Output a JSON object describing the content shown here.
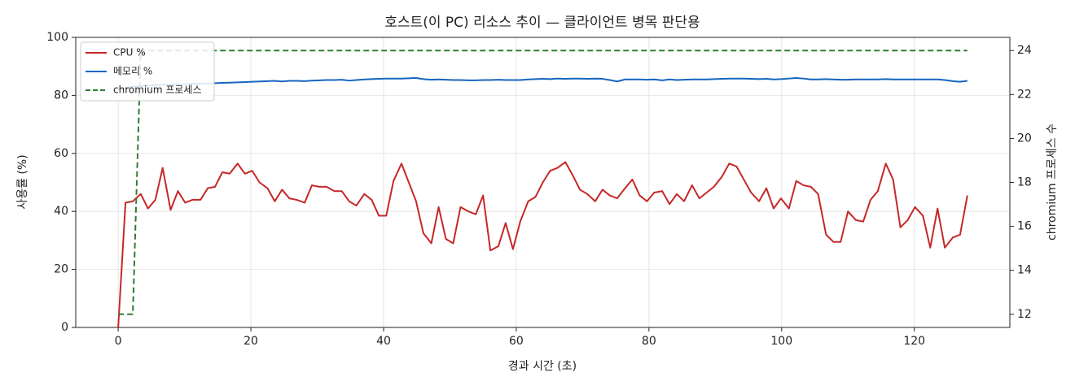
{
  "chart_data": {
    "type": "line",
    "title": "호스트(이 PC) 리소스 추이 — 클라이언트 병목 판단용",
    "xlabel": "경과 시간 (초)",
    "ylabel": "사용률 (%)",
    "y2label": "chromium 프로세스 수",
    "x": [
      0,
      1.1,
      2.2,
      3.4,
      4.5,
      5.6,
      6.7,
      7.9,
      9.0,
      10.1,
      11.2,
      12.4,
      13.5,
      14.6,
      15.7,
      16.8,
      18.0,
      19.1,
      20.2,
      21.3,
      22.5,
      23.6,
      24.7,
      25.8,
      26.9,
      28.1,
      29.2,
      30.3,
      31.4,
      32.6,
      33.7,
      34.8,
      35.9,
      37.1,
      38.2,
      39.3,
      40.4,
      41.5,
      42.7,
      43.8,
      44.9,
      46.0,
      47.2,
      48.3,
      49.4,
      50.5,
      51.6,
      52.8,
      53.9,
      55.0,
      56.1,
      57.3,
      58.4,
      59.5,
      60.6,
      61.8,
      62.9,
      64.0,
      65.1,
      66.2,
      67.4,
      68.5,
      69.6,
      70.7,
      71.9,
      73.0,
      74.1,
      75.2,
      76.4,
      77.5,
      78.6,
      79.7,
      80.8,
      82.0,
      83.1,
      84.2,
      85.3,
      86.5,
      87.6,
      88.7,
      89.8,
      91.0,
      92.1,
      93.2,
      94.3,
      95.4,
      96.6,
      97.7,
      98.8,
      99.9,
      101.1,
      102.2,
      103.3,
      104.4,
      105.5,
      106.7,
      107.8,
      108.9,
      110.0,
      111.2,
      112.3,
      113.4,
      114.5,
      115.7,
      116.8,
      117.9,
      119.0,
      120.1,
      121.3,
      122.4,
      123.5,
      124.6,
      125.8,
      126.9,
      128.0
    ],
    "series": [
      {
        "name": "CPU %",
        "color": "#c62828",
        "linestyle": "solid",
        "values": [
          0,
          43,
          43.5,
          46,
          41,
          44,
          55,
          40.5,
          47,
          43,
          44,
          44,
          48,
          48.5,
          53.5,
          53,
          56.5,
          53,
          54,
          50,
          48,
          43.5,
          47.5,
          44.5,
          44,
          43,
          49,
          48.5,
          48.5,
          47,
          47,
          43.5,
          42,
          46,
          44,
          38.5,
          38.5,
          50.5,
          56.5,
          50,
          43.5,
          32.5,
          29,
          41.5,
          30.5,
          29,
          41.5,
          40,
          39,
          45.5,
          26.5,
          28,
          36,
          27,
          36.5,
          43.5,
          45,
          50,
          54,
          55,
          57,
          52.5,
          47.5,
          46,
          43.5,
          47.5,
          45.5,
          44.5,
          48,
          51,
          45.5,
          43.5,
          46.5,
          47,
          42.5,
          46,
          43.5,
          49,
          44.5,
          46.5,
          48.5,
          52,
          56.5,
          55.5,
          51,
          46.5,
          43.5,
          48,
          41,
          44.5,
          41,
          50.5,
          49,
          48.5,
          46,
          32,
          29.5,
          29.5,
          40,
          37,
          36.5,
          44,
          47,
          56.5,
          51,
          34.5,
          37,
          41.5,
          38.5,
          27.5,
          41,
          27.5,
          31,
          32,
          45.5
        ]
      },
      {
        "name": "메모리 %",
        "color": "#1565c0",
        "linestyle": "solid",
        "values": [
          82,
          82.5,
          83,
          83.2,
          83.4,
          83.5,
          83.6,
          83.7,
          83.8,
          83.9,
          84,
          84,
          84.1,
          84.2,
          84.3,
          84.4,
          84.5,
          84.6,
          84.7,
          84.8,
          84.9,
          85,
          84.8,
          85,
          85,
          84.9,
          85.1,
          85.2,
          85.3,
          85.3,
          85.4,
          85.1,
          85.3,
          85.5,
          85.6,
          85.7,
          85.8,
          85.8,
          85.8,
          85.9,
          86,
          85.6,
          85.4,
          85.5,
          85.4,
          85.3,
          85.3,
          85.2,
          85.2,
          85.3,
          85.3,
          85.4,
          85.3,
          85.3,
          85.3,
          85.5,
          85.6,
          85.7,
          85.6,
          85.8,
          85.7,
          85.8,
          85.8,
          85.7,
          85.8,
          85.7,
          85.3,
          84.8,
          85.5,
          85.5,
          85.5,
          85.4,
          85.5,
          85.2,
          85.5,
          85.3,
          85.4,
          85.5,
          85.5,
          85.5,
          85.6,
          85.7,
          85.8,
          85.8,
          85.8,
          85.7,
          85.6,
          85.7,
          85.5,
          85.6,
          85.8,
          86,
          85.8,
          85.5,
          85.5,
          85.6,
          85.5,
          85.4,
          85.4,
          85.5,
          85.5,
          85.5,
          85.5,
          85.6,
          85.5,
          85.5,
          85.5,
          85.5,
          85.5,
          85.5,
          85.5,
          85.3,
          84.9,
          84.7,
          85
        ]
      },
      {
        "name": "chromium 프로세스",
        "color": "#2e7d32",
        "linestyle": "dashed",
        "axis": "y2",
        "values": [
          12,
          12,
          12,
          24,
          24,
          24,
          24,
          24,
          24,
          24,
          24,
          24,
          24,
          24,
          24,
          24,
          24,
          24,
          24,
          24,
          24,
          24,
          24,
          24,
          24,
          24,
          24,
          24,
          24,
          24,
          24,
          24,
          24,
          24,
          24,
          24,
          24,
          24,
          24,
          24,
          24,
          24,
          24,
          24,
          24,
          24,
          24,
          24,
          24,
          24,
          24,
          24,
          24,
          24,
          24,
          24,
          24,
          24,
          24,
          24,
          24,
          24,
          24,
          24,
          24,
          24,
          24,
          24,
          24,
          24,
          24,
          24,
          24,
          24,
          24,
          24,
          24,
          24,
          24,
          24,
          24,
          24,
          24,
          24,
          24,
          24,
          24,
          24,
          24,
          24,
          24,
          24,
          24,
          24,
          24,
          24,
          24,
          24,
          24,
          24,
          24,
          24,
          24,
          24,
          24,
          24,
          24,
          24,
          24,
          24,
          24,
          24,
          24,
          24,
          24
        ]
      }
    ],
    "xlim": [
      -6.4,
      134.4
    ],
    "xticks": [
      0,
      20,
      40,
      60,
      80,
      100,
      120
    ],
    "ylim": [
      0,
      100
    ],
    "yticks": [
      0,
      20,
      40,
      60,
      80,
      100
    ],
    "y2lim": [
      11.4,
      24.6
    ],
    "y2ticks": [
      12,
      14,
      16,
      18,
      20,
      22,
      24
    ],
    "grid": true,
    "legend": "upper-left"
  }
}
